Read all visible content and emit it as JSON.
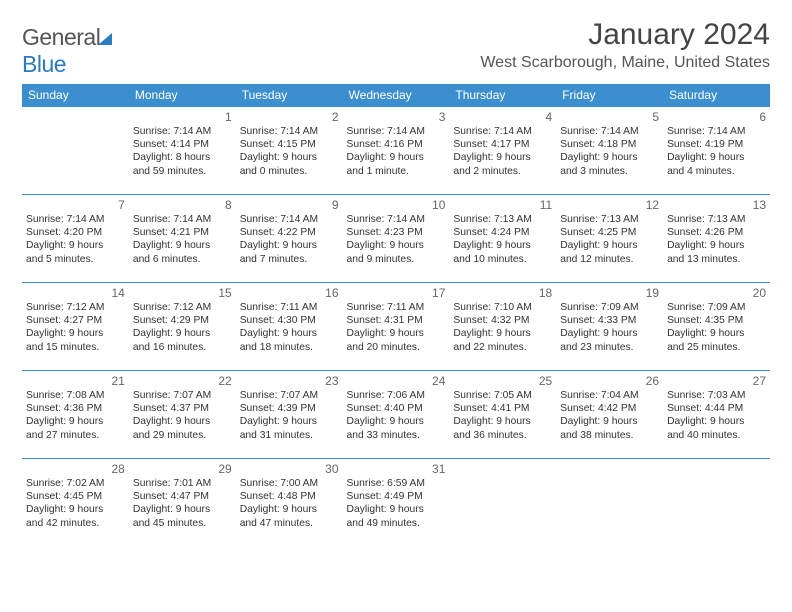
{
  "brand": {
    "part1": "General",
    "part2": "Blue"
  },
  "title": "January 2024",
  "location": "West Scarborough, Maine, United States",
  "colors": {
    "header_bg": "#3c8fce",
    "header_text": "#ffffff",
    "row_border": "#3c8fce",
    "text": "#333333",
    "daynum": "#666666",
    "title_text": "#444444",
    "brand_gray": "#555555",
    "brand_blue": "#2a7bbf"
  },
  "day_headers": [
    "Sunday",
    "Monday",
    "Tuesday",
    "Wednesday",
    "Thursday",
    "Friday",
    "Saturday"
  ],
  "weeks": [
    [
      {
        "n": "",
        "lines": []
      },
      {
        "n": "1",
        "lines": [
          "Sunrise: 7:14 AM",
          "Sunset: 4:14 PM",
          "Daylight: 8 hours",
          "and 59 minutes."
        ]
      },
      {
        "n": "2",
        "lines": [
          "Sunrise: 7:14 AM",
          "Sunset: 4:15 PM",
          "Daylight: 9 hours",
          "and 0 minutes."
        ]
      },
      {
        "n": "3",
        "lines": [
          "Sunrise: 7:14 AM",
          "Sunset: 4:16 PM",
          "Daylight: 9 hours",
          "and 1 minute."
        ]
      },
      {
        "n": "4",
        "lines": [
          "Sunrise: 7:14 AM",
          "Sunset: 4:17 PM",
          "Daylight: 9 hours",
          "and 2 minutes."
        ]
      },
      {
        "n": "5",
        "lines": [
          "Sunrise: 7:14 AM",
          "Sunset: 4:18 PM",
          "Daylight: 9 hours",
          "and 3 minutes."
        ]
      },
      {
        "n": "6",
        "lines": [
          "Sunrise: 7:14 AM",
          "Sunset: 4:19 PM",
          "Daylight: 9 hours",
          "and 4 minutes."
        ]
      }
    ],
    [
      {
        "n": "7",
        "lines": [
          "Sunrise: 7:14 AM",
          "Sunset: 4:20 PM",
          "Daylight: 9 hours",
          "and 5 minutes."
        ]
      },
      {
        "n": "8",
        "lines": [
          "Sunrise: 7:14 AM",
          "Sunset: 4:21 PM",
          "Daylight: 9 hours",
          "and 6 minutes."
        ]
      },
      {
        "n": "9",
        "lines": [
          "Sunrise: 7:14 AM",
          "Sunset: 4:22 PM",
          "Daylight: 9 hours",
          "and 7 minutes."
        ]
      },
      {
        "n": "10",
        "lines": [
          "Sunrise: 7:14 AM",
          "Sunset: 4:23 PM",
          "Daylight: 9 hours",
          "and 9 minutes."
        ]
      },
      {
        "n": "11",
        "lines": [
          "Sunrise: 7:13 AM",
          "Sunset: 4:24 PM",
          "Daylight: 9 hours",
          "and 10 minutes."
        ]
      },
      {
        "n": "12",
        "lines": [
          "Sunrise: 7:13 AM",
          "Sunset: 4:25 PM",
          "Daylight: 9 hours",
          "and 12 minutes."
        ]
      },
      {
        "n": "13",
        "lines": [
          "Sunrise: 7:13 AM",
          "Sunset: 4:26 PM",
          "Daylight: 9 hours",
          "and 13 minutes."
        ]
      }
    ],
    [
      {
        "n": "14",
        "lines": [
          "Sunrise: 7:12 AM",
          "Sunset: 4:27 PM",
          "Daylight: 9 hours",
          "and 15 minutes."
        ]
      },
      {
        "n": "15",
        "lines": [
          "Sunrise: 7:12 AM",
          "Sunset: 4:29 PM",
          "Daylight: 9 hours",
          "and 16 minutes."
        ]
      },
      {
        "n": "16",
        "lines": [
          "Sunrise: 7:11 AM",
          "Sunset: 4:30 PM",
          "Daylight: 9 hours",
          "and 18 minutes."
        ]
      },
      {
        "n": "17",
        "lines": [
          "Sunrise: 7:11 AM",
          "Sunset: 4:31 PM",
          "Daylight: 9 hours",
          "and 20 minutes."
        ]
      },
      {
        "n": "18",
        "lines": [
          "Sunrise: 7:10 AM",
          "Sunset: 4:32 PM",
          "Daylight: 9 hours",
          "and 22 minutes."
        ]
      },
      {
        "n": "19",
        "lines": [
          "Sunrise: 7:09 AM",
          "Sunset: 4:33 PM",
          "Daylight: 9 hours",
          "and 23 minutes."
        ]
      },
      {
        "n": "20",
        "lines": [
          "Sunrise: 7:09 AM",
          "Sunset: 4:35 PM",
          "Daylight: 9 hours",
          "and 25 minutes."
        ]
      }
    ],
    [
      {
        "n": "21",
        "lines": [
          "Sunrise: 7:08 AM",
          "Sunset: 4:36 PM",
          "Daylight: 9 hours",
          "and 27 minutes."
        ]
      },
      {
        "n": "22",
        "lines": [
          "Sunrise: 7:07 AM",
          "Sunset: 4:37 PM",
          "Daylight: 9 hours",
          "and 29 minutes."
        ]
      },
      {
        "n": "23",
        "lines": [
          "Sunrise: 7:07 AM",
          "Sunset: 4:39 PM",
          "Daylight: 9 hours",
          "and 31 minutes."
        ]
      },
      {
        "n": "24",
        "lines": [
          "Sunrise: 7:06 AM",
          "Sunset: 4:40 PM",
          "Daylight: 9 hours",
          "and 33 minutes."
        ]
      },
      {
        "n": "25",
        "lines": [
          "Sunrise: 7:05 AM",
          "Sunset: 4:41 PM",
          "Daylight: 9 hours",
          "and 36 minutes."
        ]
      },
      {
        "n": "26",
        "lines": [
          "Sunrise: 7:04 AM",
          "Sunset: 4:42 PM",
          "Daylight: 9 hours",
          "and 38 minutes."
        ]
      },
      {
        "n": "27",
        "lines": [
          "Sunrise: 7:03 AM",
          "Sunset: 4:44 PM",
          "Daylight: 9 hours",
          "and 40 minutes."
        ]
      }
    ],
    [
      {
        "n": "28",
        "lines": [
          "Sunrise: 7:02 AM",
          "Sunset: 4:45 PM",
          "Daylight: 9 hours",
          "and 42 minutes."
        ]
      },
      {
        "n": "29",
        "lines": [
          "Sunrise: 7:01 AM",
          "Sunset: 4:47 PM",
          "Daylight: 9 hours",
          "and 45 minutes."
        ]
      },
      {
        "n": "30",
        "lines": [
          "Sunrise: 7:00 AM",
          "Sunset: 4:48 PM",
          "Daylight: 9 hours",
          "and 47 minutes."
        ]
      },
      {
        "n": "31",
        "lines": [
          "Sunrise: 6:59 AM",
          "Sunset: 4:49 PM",
          "Daylight: 9 hours",
          "and 49 minutes."
        ]
      },
      {
        "n": "",
        "lines": []
      },
      {
        "n": "",
        "lines": []
      },
      {
        "n": "",
        "lines": []
      }
    ]
  ]
}
